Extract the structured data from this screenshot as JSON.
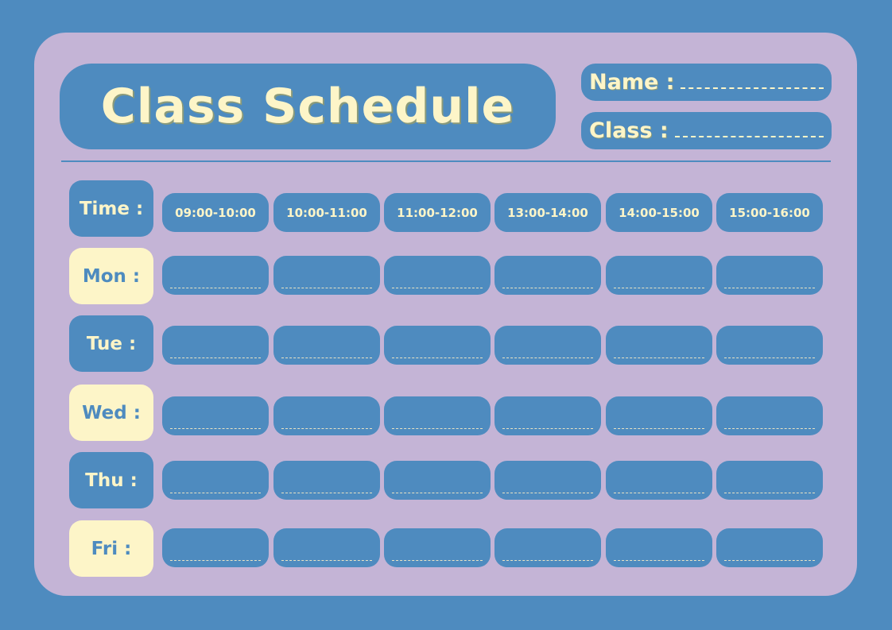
{
  "title": "Class Schedule",
  "fields": {
    "name_label": "Name :",
    "class_label": "Class :"
  },
  "time_label": "Time :",
  "time_slots": [
    "09:00-10:00",
    "10:00-11:00",
    "11:00-12:00",
    "13:00-14:00",
    "14:00-15:00",
    "15:00-16:00"
  ],
  "days": [
    {
      "label": "Mon :",
      "style": "cream"
    },
    {
      "label": "Tue :",
      "style": "blue"
    },
    {
      "label": "Wed :",
      "style": "cream"
    },
    {
      "label": "Thu :",
      "style": "blue"
    },
    {
      "label": "Fri :",
      "style": "cream"
    }
  ],
  "colors": {
    "background": "#4e8bbf",
    "card": "#c4b4d6",
    "cream": "#fdf5c8"
  }
}
